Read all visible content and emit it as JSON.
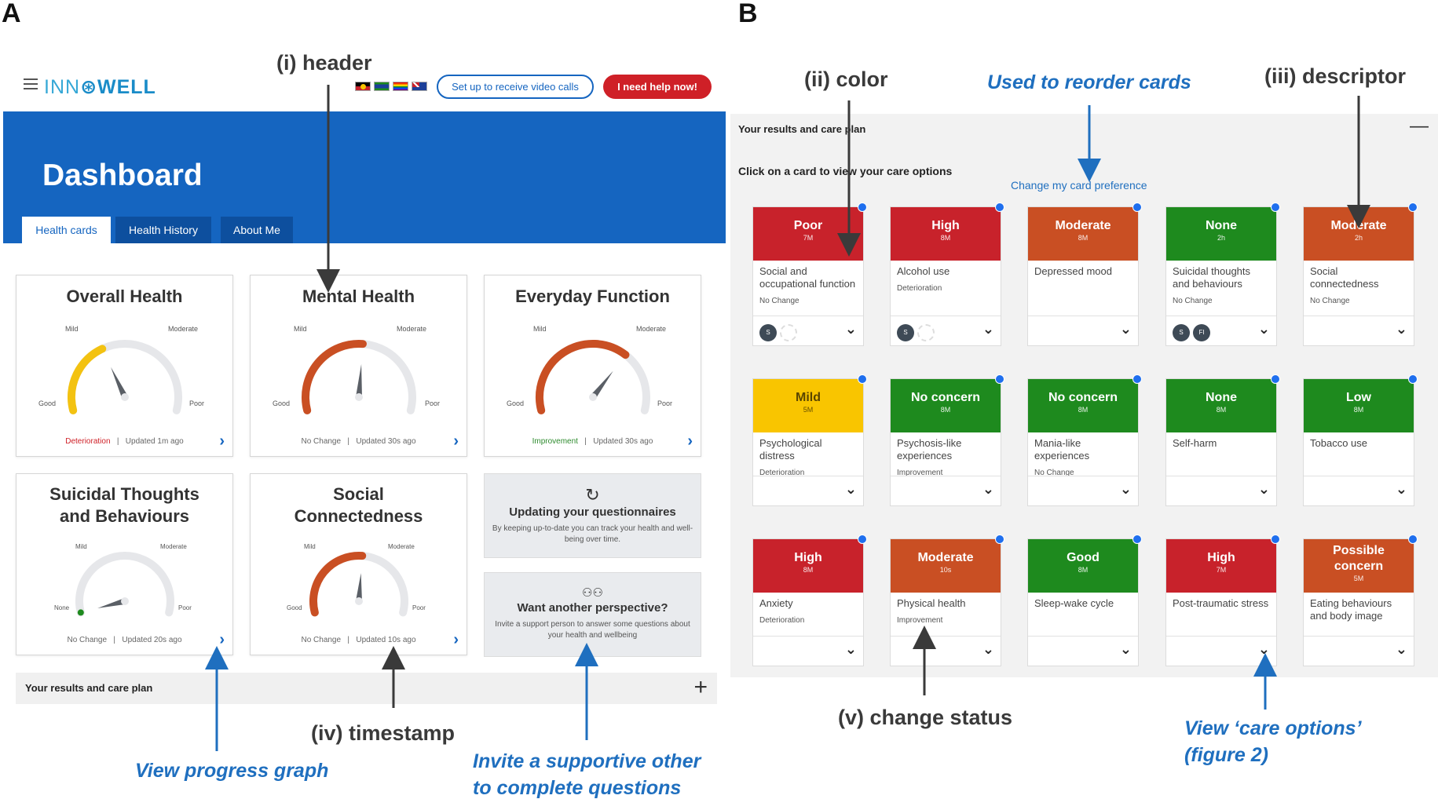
{
  "panels": {
    "a": "A",
    "b": "B"
  },
  "annotations": {
    "header": "(i) header",
    "color": "(ii) color",
    "reorder": "Used to reorder cards",
    "descriptor": "(iii) descriptor",
    "timestamp": "(iv)  timestamp",
    "change_status": "(v) change status",
    "progress_graph": "View progress graph",
    "invite_line1": "Invite a supportive other",
    "invite_line2": "to complete questions",
    "care_options_line1": "View ‘care options’",
    "care_options_line2": "(figure 2)"
  },
  "app": {
    "logo_light": "INN",
    "logo_bold": "WELL",
    "video_button": "Set up to receive video calls",
    "help_button": "I need help now!",
    "flags": [
      "aboriginal-flag",
      "torres-strait-flag",
      "rainbow-flag",
      "australia-flag"
    ]
  },
  "dashboard": {
    "title": "Dashboard",
    "tabs": [
      "Health cards",
      "Health History",
      "About Me"
    ]
  },
  "gauges": [
    {
      "title": "Overall Health",
      "labels": [
        "Mild",
        "Moderate",
        "Good",
        "Poor"
      ],
      "status": "Deterioration",
      "updated": "Updated 1m ago",
      "level": 0.38,
      "color": "#f3c211"
    },
    {
      "title": "Mental Health",
      "labels": [
        "Mild",
        "Moderate",
        "Good",
        "Poor"
      ],
      "status": "No Change",
      "updated": "Updated 30s ago",
      "level": 0.52,
      "color": "#c94f23"
    },
    {
      "title": "Everyday Function",
      "labels": [
        "Mild",
        "Moderate",
        "Good",
        "Poor"
      ],
      "status": "Improvement",
      "updated": "Updated 30s ago",
      "level": 0.68,
      "color": "#c94f23"
    },
    {
      "title": "Suicidal Thoughts and Behaviours",
      "labels": [
        "Mild",
        "Moderate",
        "None",
        "Poor"
      ],
      "status": "No Change",
      "updated": "Updated 20s ago",
      "level": 0.0,
      "color": "#1e8a1e"
    },
    {
      "title": "Social Connectedness",
      "labels": [
        "Mild",
        "Moderate",
        "Good",
        "Poor"
      ],
      "status": "No Change",
      "updated": "Updated 10s ago",
      "level": 0.52,
      "color": "#c94f23"
    }
  ],
  "info_cards": [
    {
      "icon": "refresh-icon",
      "title": "Updating your questionnaires",
      "body": "By keeping up-to-date you can track your health and well-being over time."
    },
    {
      "icon": "people-icon",
      "title": "Want another perspective?",
      "body": "Invite a support person to answer some questions about your health and wellbeing"
    }
  ],
  "results_bar": {
    "label": "Your results and care plan"
  },
  "panel_b": {
    "title": "Your results and care plan",
    "instruction": "Click on a card to view your care options",
    "preference_link": "Change my card preference",
    "cards": [
      {
        "level": "Poor",
        "age": "7M",
        "desc": "Social and occupational function",
        "status": "No Change",
        "color": "red",
        "avatars": [
          "S",
          ""
        ]
      },
      {
        "level": "High",
        "age": "8M",
        "desc": "Alcohol use",
        "status": "Deterioration",
        "color": "red",
        "avatars": [
          "S",
          ""
        ]
      },
      {
        "level": "Moderate",
        "age": "8M",
        "desc": "Depressed mood",
        "status": "",
        "color": "orange",
        "avatars": []
      },
      {
        "level": "None",
        "age": "2h",
        "desc": "Suicidal thoughts and behaviours",
        "status": "No Change",
        "color": "green",
        "avatars": [
          "S",
          "FI"
        ]
      },
      {
        "level": "Moderate",
        "age": "2h",
        "desc": "Social connectedness",
        "status": "No Change",
        "color": "orange",
        "avatars": []
      },
      {
        "level": "Mild",
        "age": "5M",
        "desc": "Psychological distress",
        "status": "Deterioration",
        "color": "yellow",
        "avatars": []
      },
      {
        "level": "No concern",
        "age": "8M",
        "desc": "Psychosis-like experiences",
        "status": "Improvement",
        "color": "green",
        "avatars": []
      },
      {
        "level": "No concern",
        "age": "8M",
        "desc": "Mania-like experiences",
        "status": "No Change",
        "color": "green",
        "avatars": []
      },
      {
        "level": "None",
        "age": "8M",
        "desc": "Self-harm",
        "status": "",
        "color": "green",
        "avatars": []
      },
      {
        "level": "Low",
        "age": "8M",
        "desc": "Tobacco use",
        "status": "",
        "color": "green",
        "avatars": []
      },
      {
        "level": "High",
        "age": "8M",
        "desc": "Anxiety",
        "status": "Deterioration",
        "color": "red",
        "avatars": []
      },
      {
        "level": "Moderate",
        "age": "10s",
        "desc": "Physical health",
        "status": "Improvement",
        "color": "orange",
        "avatars": []
      },
      {
        "level": "Good",
        "age": "8M",
        "desc": "Sleep-wake cycle",
        "status": "",
        "color": "green",
        "avatars": []
      },
      {
        "level": "High",
        "age": "7M",
        "desc": "Post-traumatic stress",
        "status": "",
        "color": "red",
        "avatars": []
      },
      {
        "level": "Possible concern",
        "age": "5M",
        "desc": "Eating behaviours and body image",
        "status": "",
        "color": "orange",
        "avatars": []
      }
    ]
  }
}
